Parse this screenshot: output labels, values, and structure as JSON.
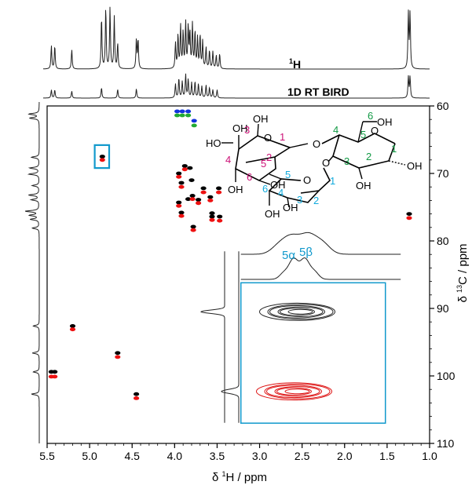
{
  "chart_data": {
    "type": "scatter",
    "title": "",
    "xlabel_prefix": "δ ",
    "xlabel_sup": "1",
    "xlabel_rest": "H / ppm",
    "ylabel_prefix": "δ ",
    "ylabel_sup": "13",
    "ylabel_rest": "C / ppm",
    "xlim": [
      5.5,
      1.0
    ],
    "ylim": [
      110,
      60
    ],
    "x_ticks": [
      5.5,
      5.0,
      4.5,
      4.0,
      3.5,
      3.0,
      2.5,
      2.0,
      1.5,
      1.0
    ],
    "x_tick_labels": [
      "5.5",
      "5.0",
      "4.5",
      "4.0",
      "3.5",
      "3.0",
      "2.5",
      "2.0",
      "1.5",
      "1.0"
    ],
    "y_ticks": [
      60,
      70,
      80,
      90,
      100,
      110
    ],
    "y_tick_labels": [
      "60",
      "70",
      "80",
      "90",
      "100",
      "110"
    ],
    "grid": false,
    "trace_labels": {
      "proton_sup": "1",
      "proton_rest": "H",
      "bird": "1D RT BIRD"
    },
    "proton_peaks": [
      {
        "x": 5.45,
        "h": 0.38
      },
      {
        "x": 5.41,
        "h": 0.38
      },
      {
        "x": 5.21,
        "h": 0.32
      },
      {
        "x": 4.86,
        "h": 0.85
      },
      {
        "x": 4.81,
        "h": 1.0
      },
      {
        "x": 4.76,
        "h": 1.0
      },
      {
        "x": 4.71,
        "h": 0.85
      },
      {
        "x": 4.67,
        "h": 0.42
      },
      {
        "x": 4.45,
        "h": 0.48
      },
      {
        "x": 4.43,
        "h": 0.48
      },
      {
        "x": 3.99,
        "h": 0.42
      },
      {
        "x": 3.96,
        "h": 0.55
      },
      {
        "x": 3.93,
        "h": 0.7
      },
      {
        "x": 3.9,
        "h": 0.6
      },
      {
        "x": 3.87,
        "h": 0.75
      },
      {
        "x": 3.84,
        "h": 0.68
      },
      {
        "x": 3.82,
        "h": 0.58
      },
      {
        "x": 3.79,
        "h": 0.72
      },
      {
        "x": 3.76,
        "h": 0.6
      },
      {
        "x": 3.73,
        "h": 0.5
      },
      {
        "x": 3.7,
        "h": 0.55
      },
      {
        "x": 3.67,
        "h": 0.45
      },
      {
        "x": 3.63,
        "h": 0.35
      },
      {
        "x": 3.59,
        "h": 0.3
      },
      {
        "x": 3.55,
        "h": 0.28
      },
      {
        "x": 3.51,
        "h": 0.22
      },
      {
        "x": 3.47,
        "h": 0.25
      },
      {
        "x": 1.25,
        "h": 0.9
      },
      {
        "x": 1.23,
        "h": 0.9
      }
    ],
    "bird_peaks": [
      {
        "x": 5.45,
        "h": 0.35
      },
      {
        "x": 5.41,
        "h": 0.35
      },
      {
        "x": 5.21,
        "h": 0.3
      },
      {
        "x": 4.86,
        "h": 0.45
      },
      {
        "x": 4.67,
        "h": 0.38
      },
      {
        "x": 4.45,
        "h": 0.4
      },
      {
        "x": 3.99,
        "h": 0.6
      },
      {
        "x": 3.95,
        "h": 0.85
      },
      {
        "x": 3.91,
        "h": 0.7
      },
      {
        "x": 3.87,
        "h": 1.0
      },
      {
        "x": 3.84,
        "h": 0.8
      },
      {
        "x": 3.8,
        "h": 0.65
      },
      {
        "x": 3.76,
        "h": 0.7
      },
      {
        "x": 3.72,
        "h": 0.6
      },
      {
        "x": 3.68,
        "h": 0.5
      },
      {
        "x": 3.63,
        "h": 0.55
      },
      {
        "x": 3.59,
        "h": 0.45
      },
      {
        "x": 3.55,
        "h": 0.35
      },
      {
        "x": 3.5,
        "h": 0.35
      },
      {
        "x": 1.25,
        "h": 0.9
      },
      {
        "x": 1.23,
        "h": 0.9
      }
    ],
    "carbon_peaks": [
      {
        "y": 61.2,
        "h": 0.6
      },
      {
        "y": 61.8,
        "h": 0.55
      },
      {
        "y": 67.6,
        "h": 0.45
      },
      {
        "y": 69.2,
        "h": 0.55
      },
      {
        "y": 70.1,
        "h": 0.6
      },
      {
        "y": 71.8,
        "h": 0.4
      },
      {
        "y": 73.2,
        "h": 0.6
      },
      {
        "y": 73.9,
        "h": 0.45
      },
      {
        "y": 75.6,
        "h": 0.8
      },
      {
        "y": 76.2,
        "h": 0.55
      },
      {
        "y": 76.8,
        "h": 0.5
      },
      {
        "y": 78.1,
        "h": 0.4
      },
      {
        "y": 92.6,
        "h": 0.35
      },
      {
        "y": 96.6,
        "h": 0.4
      },
      {
        "y": 99.4,
        "h": 0.35
      },
      {
        "y": 102.7,
        "h": 0.45
      }
    ],
    "series": [
      {
        "color": "#000000",
        "points": [
          [
            4.85,
            67.5
          ],
          [
            3.88,
            68.9
          ],
          [
            3.82,
            69.2
          ],
          [
            3.95,
            70.0
          ],
          [
            3.92,
            71.4
          ],
          [
            3.8,
            71.0
          ],
          [
            3.66,
            72.2
          ],
          [
            3.48,
            72.2
          ],
          [
            3.79,
            73.3
          ],
          [
            3.72,
            73.9
          ],
          [
            3.58,
            73.5
          ],
          [
            3.84,
            73.8
          ],
          [
            3.95,
            74.3
          ],
          [
            3.92,
            75.8
          ],
          [
            3.56,
            75.9
          ],
          [
            3.56,
            76.4
          ],
          [
            3.47,
            76.4
          ],
          [
            3.78,
            77.9
          ],
          [
            1.24,
            76.0
          ],
          [
            5.2,
            92.6
          ],
          [
            4.67,
            96.6
          ],
          [
            5.45,
            99.4
          ],
          [
            5.41,
            99.4
          ],
          [
            4.45,
            102.7
          ]
        ]
      },
      {
        "color": "#ee1111",
        "points": [
          [
            4.85,
            68.0
          ],
          [
            3.88,
            69.4
          ],
          [
            3.95,
            70.5
          ],
          [
            3.92,
            72.0
          ],
          [
            3.66,
            72.8
          ],
          [
            3.48,
            72.8
          ],
          [
            3.79,
            73.8
          ],
          [
            3.72,
            74.4
          ],
          [
            3.58,
            74.0
          ],
          [
            3.95,
            74.8
          ],
          [
            3.92,
            76.3
          ],
          [
            3.56,
            76.9
          ],
          [
            3.47,
            77.0
          ],
          [
            3.78,
            78.4
          ],
          [
            1.24,
            76.6
          ],
          [
            5.2,
            93.1
          ],
          [
            4.67,
            97.2
          ],
          [
            5.45,
            100.1
          ],
          [
            5.41,
            100.1
          ],
          [
            4.45,
            103.3
          ]
        ]
      },
      {
        "color": "#1133dd",
        "points": [
          [
            3.97,
            60.8
          ],
          [
            3.91,
            60.8
          ],
          [
            3.84,
            60.8
          ],
          [
            3.77,
            62.2
          ]
        ]
      },
      {
        "color": "#22aa33",
        "points": [
          [
            3.97,
            61.4
          ],
          [
            3.91,
            61.4
          ],
          [
            3.84,
            61.4
          ],
          [
            3.77,
            62.9
          ]
        ]
      }
    ],
    "highlight_box": {
      "x": [
        4.94,
        4.77
      ],
      "y": [
        65.8,
        69.2
      ],
      "color": "#1199cc"
    },
    "inset": {
      "x_range": [
        3.22,
        1.52
      ],
      "y_range": [
        86.2,
        107.0
      ],
      "border_color": "#1199cc",
      "black_contour_center": {
        "x": 2.52,
        "y": 90.5
      },
      "red_contour_center": {
        "x": 2.52,
        "y": 102.3
      },
      "label_5a": "5α",
      "label_5b": "5β"
    }
  },
  "molecule": {
    "ring1_labels": [
      "1",
      "2",
      "3",
      "4",
      "5",
      "6"
    ],
    "ring2_labels": [
      "1",
      "2",
      "3",
      "4",
      "5",
      "6"
    ],
    "ring3_labels": [
      "1",
      "2",
      "3",
      "4",
      "5",
      "6"
    ],
    "colors": {
      "ring1": "#cc1177",
      "ring2": "#119944",
      "ring3": "#11aadd"
    },
    "atoms": {
      "oxygen": "O",
      "hydroxyl": "OH",
      "ho": "HO"
    }
  }
}
